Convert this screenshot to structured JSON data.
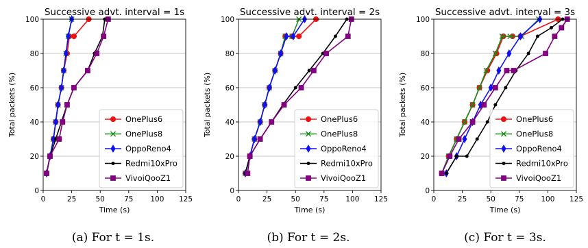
{
  "chart_data": [
    {
      "type": "line",
      "title": "Successive advt. interval = 1s",
      "xlabel": "Time (s)",
      "ylabel": "Total packets (%)",
      "xlim": [
        0,
        125
      ],
      "ylim": [
        0,
        100
      ],
      "xticks": [
        0,
        25,
        50,
        75,
        100,
        125
      ],
      "yticks": [
        0,
        20,
        40,
        60,
        80,
        100
      ],
      "grid": "horizontal",
      "legend": "bottom-right",
      "caption": "(a) For t = 1s.",
      "series": [
        {
          "name": "OnePlus6",
          "x": [
            3,
            6,
            9,
            11,
            13,
            16,
            18,
            21,
            23,
            27,
            40
          ],
          "y": [
            10,
            20,
            30,
            40,
            50,
            60,
            70,
            80,
            90,
            90,
            100
          ]
        },
        {
          "name": "OnePlus8",
          "x": [
            3,
            6,
            9,
            11,
            13,
            16,
            18,
            20,
            22,
            25
          ],
          "y": [
            10,
            20,
            30,
            40,
            50,
            60,
            70,
            80,
            90,
            100
          ]
        },
        {
          "name": "OppoReno4",
          "x": [
            3,
            6,
            9,
            11,
            13,
            16,
            18,
            20,
            22,
            25
          ],
          "y": [
            10,
            20,
            30,
            40,
            50,
            60,
            70,
            80,
            90,
            100
          ]
        },
        {
          "name": "Redmi10xPro",
          "x": [
            3,
            6,
            11,
            16,
            21,
            27,
            39,
            45,
            52,
            54
          ],
          "y": [
            10,
            20,
            30,
            40,
            50,
            60,
            70,
            80,
            90,
            100
          ]
        },
        {
          "name": "VivoiQooZ1",
          "x": [
            3,
            6,
            14,
            17,
            21,
            27,
            39,
            47,
            53,
            57
          ],
          "y": [
            10,
            20,
            30,
            40,
            50,
            60,
            70,
            80,
            90,
            100
          ]
        }
      ]
    },
    {
      "type": "line",
      "title": "Successive advt. interval = 2s",
      "xlabel": "Time (s)",
      "ylabel": "Total packets (%)",
      "xlim": [
        0,
        125
      ],
      "ylim": [
        0,
        100
      ],
      "xticks": [
        0,
        25,
        50,
        75,
        100,
        125
      ],
      "yticks": [
        0,
        20,
        40,
        60,
        80,
        100
      ],
      "grid": "horizontal",
      "legend": "bottom-right",
      "caption": "(b) For t = 2s.",
      "series": [
        {
          "name": "OnePlus6",
          "x": [
            6,
            10,
            14,
            19,
            23,
            27,
            32,
            37,
            41,
            47,
            53,
            68
          ],
          "y": [
            10,
            20,
            30,
            40,
            50,
            60,
            70,
            80,
            90,
            90,
            90,
            100
          ]
        },
        {
          "name": "OnePlus8",
          "x": [
            6,
            10,
            14,
            19,
            23,
            27,
            32,
            37,
            41,
            47,
            53
          ],
          "y": [
            10,
            20,
            30,
            40,
            50,
            60,
            70,
            80,
            90,
            90,
            100
          ]
        },
        {
          "name": "OppoReno4",
          "x": [
            6,
            10,
            14,
            19,
            23,
            27,
            32,
            37,
            42,
            48,
            58
          ],
          "y": [
            10,
            20,
            30,
            40,
            50,
            60,
            70,
            80,
            90,
            90,
            100
          ]
        },
        {
          "name": "Redmi10xPro",
          "x": [
            6,
            10,
            19,
            29,
            39,
            50,
            62,
            74,
            85,
            95
          ],
          "y": [
            10,
            20,
            30,
            40,
            50,
            60,
            70,
            80,
            90,
            100
          ]
        },
        {
          "name": "VivoiQooZ1",
          "x": [
            8,
            10,
            19,
            29,
            40,
            55,
            66,
            77,
            96,
            99
          ],
          "y": [
            10,
            20,
            30,
            40,
            50,
            60,
            70,
            80,
            90,
            100
          ]
        }
      ]
    },
    {
      "type": "line",
      "title": "Successive advt. interval = 3s",
      "xlabel": "Time (s)",
      "ylabel": "Total packets (%)",
      "xlim": [
        0,
        125
      ],
      "ylim": [
        0,
        100
      ],
      "xticks": [
        0,
        25,
        50,
        75,
        100,
        125
      ],
      "yticks": [
        0,
        20,
        40,
        60,
        80,
        100
      ],
      "grid": "horizontal",
      "legend": "bottom-right",
      "caption": "(c) For t = 3s.",
      "series": [
        {
          "name": "OnePlus6",
          "x": [
            7,
            13,
            20,
            27,
            34,
            40,
            47,
            55,
            61,
            69,
            76,
            109
          ],
          "y": [
            10,
            20,
            30,
            40,
            50,
            60,
            70,
            80,
            90,
            90,
            90,
            100
          ]
        },
        {
          "name": "OnePlus8",
          "x": [
            7,
            13,
            20,
            27,
            34,
            40,
            46,
            54,
            60,
            67,
            77,
            92
          ],
          "y": [
            10,
            20,
            30,
            40,
            50,
            60,
            70,
            80,
            90,
            90,
            90,
            100
          ]
        },
        {
          "name": "OppoReno4",
          "x": [
            11,
            20,
            27,
            34,
            41,
            50,
            57,
            66,
            76,
            93
          ],
          "y": [
            10,
            20,
            30,
            40,
            50,
            60,
            70,
            80,
            90,
            100
          ]
        },
        {
          "name": "Redmi10xPro",
          "x": [
            11,
            20,
            29,
            38,
            47,
            54,
            63,
            72,
            83,
            91,
            103,
            113
          ],
          "y": [
            10,
            20,
            20,
            30,
            40,
            50,
            60,
            70,
            80,
            90,
            95,
            100
          ]
        },
        {
          "name": "VivoiQooZ1",
          "x": [
            7,
            14,
            22,
            34,
            44,
            54,
            64,
            70,
            98,
            106,
            112,
            117
          ],
          "y": [
            10,
            20,
            30,
            40,
            50,
            60,
            70,
            70,
            80,
            90,
            95,
            100
          ]
        }
      ]
    }
  ],
  "colors": {
    "OnePlus6": "#ee1111",
    "OnePlus8": "#1a8a1a",
    "OppoReno4": "#1111ee",
    "Redmi10xPro": "#000000",
    "VivoiQooZ1": "#800080"
  },
  "markers": {
    "OnePlus6": "circle",
    "OnePlus8": "x",
    "OppoReno4": "thin-diamond",
    "Redmi10xPro": "point",
    "VivoiQooZ1": "square"
  }
}
